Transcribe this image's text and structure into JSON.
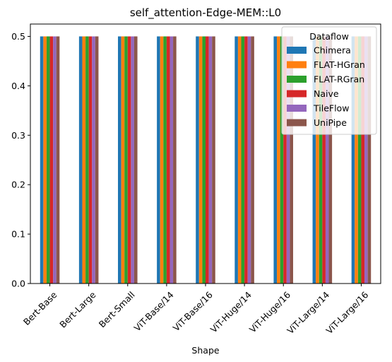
{
  "chart_data": {
    "type": "bar",
    "title": "self_attention-Edge-MEM::L0",
    "xlabel": "Shape",
    "ylabel": "",
    "ylim": [
      0,
      0.525
    ],
    "yticks": [
      "0.0",
      "0.1",
      "0.2",
      "0.3",
      "0.4",
      "0.5"
    ],
    "grid": false,
    "legend": {
      "title": "Dataflow",
      "placement": "top-right"
    },
    "categories": [
      "Bert-Base",
      "Bert-Large",
      "Bert-Small",
      "ViT-Base/14",
      "ViT-Base/16",
      "ViT-Huge/14",
      "ViT-Huge/16",
      "ViT-Large/14",
      "ViT-Large/16"
    ],
    "series": [
      {
        "name": "Chimera",
        "color": "#1f77b4",
        "values": [
          0.5,
          0.5,
          0.5,
          0.5,
          0.5,
          0.5,
          0.5,
          0.5,
          0.5
        ]
      },
      {
        "name": "FLAT-HGran",
        "color": "#ff7f0e",
        "values": [
          0.5,
          0.5,
          0.5,
          0.5,
          0.5,
          0.5,
          0.5,
          0.5,
          0.5
        ]
      },
      {
        "name": "FLAT-RGran",
        "color": "#2ca02c",
        "values": [
          0.5,
          0.5,
          0.5,
          0.5,
          0.5,
          0.5,
          0.5,
          0.5,
          0.5
        ]
      },
      {
        "name": "Naive",
        "color": "#d62728",
        "values": [
          0.5,
          0.5,
          0.5,
          0.5,
          0.5,
          0.5,
          0.5,
          0.5,
          0.5
        ]
      },
      {
        "name": "TileFlow",
        "color": "#9467bd",
        "values": [
          0.5,
          0.5,
          0.5,
          0.5,
          0.5,
          0.5,
          0.5,
          0.5,
          0.5
        ]
      },
      {
        "name": "UniPipe",
        "color": "#8c564b",
        "values": [
          0.5,
          0.5,
          0.5,
          0.5,
          0.5,
          0.5,
          0.5,
          0.5,
          0.5
        ]
      }
    ]
  }
}
